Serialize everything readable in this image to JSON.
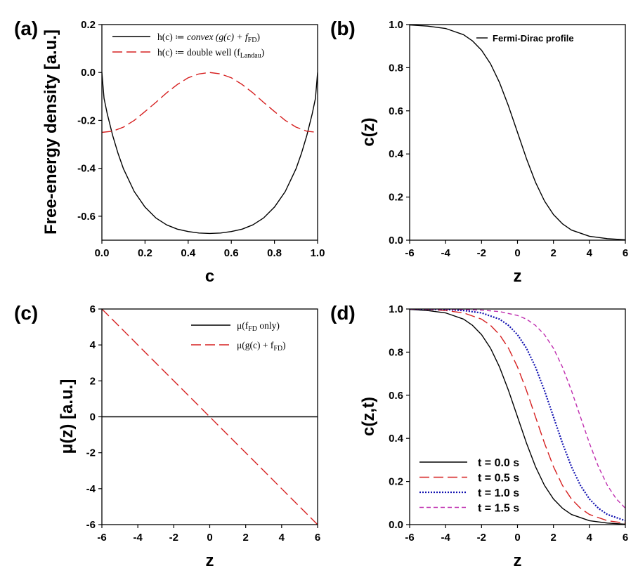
{
  "chart_data": [
    {
      "panel": "(a)",
      "type": "line",
      "xlabel": "c",
      "ylabel": "Free-energy density [a.u.]",
      "xlim": [
        0.0,
        1.0
      ],
      "ylim": [
        -0.7,
        0.2
      ],
      "x_ticks": [
        "0.0",
        "0.2",
        "0.4",
        "0.6",
        "0.8",
        "1.0"
      ],
      "y_ticks": [
        "-0.6",
        "-0.4",
        "-0.2",
        "0.0",
        "0.2"
      ],
      "legend_position": "top-right",
      "series": [
        {
          "name": "h(c) ≔ convex (g(c) + fFD)",
          "name_parts": {
            "prefix": "h(c) ≔ ",
            "italic": "convex (g(c) + f",
            "sub": "FD",
            "suffix": ")"
          },
          "color": "#000000",
          "dash": "solid",
          "x": [
            0.0,
            0.01,
            0.025,
            0.05,
            0.075,
            0.1,
            0.15,
            0.2,
            0.25,
            0.3,
            0.35,
            0.4,
            0.45,
            0.5,
            0.55,
            0.6,
            0.65,
            0.7,
            0.75,
            0.8,
            0.85,
            0.9,
            0.925,
            0.95,
            0.975,
            0.99,
            1.0
          ],
          "y": [
            0.0,
            -0.108,
            -0.173,
            -0.263,
            -0.338,
            -0.402,
            -0.497,
            -0.562,
            -0.607,
            -0.636,
            -0.654,
            -0.664,
            -0.67,
            -0.672,
            -0.67,
            -0.664,
            -0.654,
            -0.636,
            -0.607,
            -0.562,
            -0.497,
            -0.402,
            -0.338,
            -0.263,
            -0.173,
            -0.108,
            0.0
          ]
        },
        {
          "name": "h(c) ≔ double well (fLandau)",
          "name_parts": {
            "prefix": "h(c) ≔ double well (f",
            "sub": "Landau",
            "suffix": ")"
          },
          "color": "#d62020",
          "dash": "long-dash",
          "x": [
            0.0,
            0.05,
            0.1,
            0.15,
            0.2,
            0.25,
            0.3,
            0.35,
            0.4,
            0.45,
            0.5,
            0.55,
            0.6,
            0.65,
            0.7,
            0.75,
            0.8,
            0.85,
            0.9,
            0.95,
            1.0
          ],
          "y": [
            -0.25,
            -0.245,
            -0.228,
            -0.2,
            -0.163,
            -0.125,
            -0.085,
            -0.05,
            -0.022,
            -0.006,
            0.0,
            -0.006,
            -0.022,
            -0.05,
            -0.085,
            -0.125,
            -0.163,
            -0.2,
            -0.228,
            -0.245,
            -0.25
          ]
        }
      ]
    },
    {
      "panel": "(b)",
      "type": "line",
      "xlabel": "z",
      "ylabel": "c(z)",
      "xlim": [
        -6,
        6
      ],
      "ylim": [
        0.0,
        1.0
      ],
      "x_ticks": [
        "-6",
        "-4",
        "-2",
        "0",
        "2",
        "4",
        "6"
      ],
      "y_ticks": [
        "0.0",
        "0.2",
        "0.4",
        "0.6",
        "0.8",
        "1.0"
      ],
      "legend_position": "top-right",
      "series": [
        {
          "name": "Fermi-Dirac profile",
          "color": "#000000",
          "dash": "solid",
          "x": [
            -6,
            -5,
            -4,
            -3,
            -2.5,
            -2,
            -1.5,
            -1,
            -0.5,
            0,
            0.5,
            1,
            1.5,
            2,
            2.5,
            3,
            4,
            5,
            6
          ],
          "y": [
            0.998,
            0.993,
            0.982,
            0.953,
            0.924,
            0.881,
            0.818,
            0.731,
            0.622,
            0.5,
            0.378,
            0.269,
            0.182,
            0.119,
            0.076,
            0.047,
            0.018,
            0.007,
            0.002
          ]
        }
      ]
    },
    {
      "panel": "(c)",
      "type": "line",
      "xlabel": "z",
      "ylabel": "μ(z) [a.u.]",
      "xlim": [
        -6,
        6
      ],
      "ylim": [
        -6,
        6
      ],
      "x_ticks": [
        "-6",
        "-4",
        "-2",
        "0",
        "2",
        "4",
        "6"
      ],
      "y_ticks": [
        "-6",
        "-4",
        "-2",
        "0",
        "2",
        "4",
        "6"
      ],
      "legend_position": "top-right",
      "series": [
        {
          "name": "μ(fFD only)",
          "name_parts": {
            "prefix": "μ(f",
            "sub": "FD",
            "suffix": " only)"
          },
          "color": "#000000",
          "dash": "solid",
          "x": [
            -6,
            6
          ],
          "y": [
            0,
            0
          ]
        },
        {
          "name": "μ(g(c) + fFD)",
          "name_parts": {
            "prefix": "μ(g(c) + f",
            "sub": "FD",
            "suffix": ")"
          },
          "color": "#d62020",
          "dash": "long-dash",
          "x": [
            -6,
            6
          ],
          "y": [
            6,
            -6
          ]
        }
      ]
    },
    {
      "panel": "(d)",
      "type": "line",
      "xlabel": "z",
      "ylabel": "c(z,t)",
      "xlim": [
        -6,
        6
      ],
      "ylim": [
        0.0,
        1.0
      ],
      "x_ticks": [
        "-6",
        "-4",
        "-2",
        "0",
        "2",
        "4",
        "6"
      ],
      "y_ticks": [
        "0.0",
        "0.2",
        "0.4",
        "0.6",
        "0.8",
        "1.0"
      ],
      "legend_position": "bottom-left",
      "series": [
        {
          "name": "t = 0.0 s",
          "color": "#000000",
          "dash": "solid",
          "x": [
            -6,
            -5,
            -4,
            -3,
            -2.5,
            -2,
            -1.5,
            -1,
            -0.5,
            0,
            0.5,
            1,
            1.5,
            2,
            2.5,
            3,
            4,
            5,
            6
          ],
          "y": [
            0.998,
            0.993,
            0.982,
            0.953,
            0.924,
            0.881,
            0.818,
            0.731,
            0.622,
            0.5,
            0.378,
            0.269,
            0.182,
            0.119,
            0.076,
            0.047,
            0.018,
            0.007,
            0.002
          ]
        },
        {
          "name": "t = 0.5 s",
          "color": "#d62020",
          "dash": "long-dash",
          "x": [
            -6,
            -5,
            -4,
            -3,
            -2,
            -1.5,
            -1,
            -0.5,
            0,
            0.5,
            1,
            1.5,
            2,
            2.5,
            3,
            3.5,
            4,
            5,
            6
          ],
          "y": [
            0.999,
            0.998,
            0.993,
            0.982,
            0.953,
            0.924,
            0.881,
            0.818,
            0.731,
            0.622,
            0.5,
            0.378,
            0.269,
            0.182,
            0.119,
            0.076,
            0.047,
            0.018,
            0.007
          ]
        },
        {
          "name": "t = 1.0 s",
          "color": "#1010b0",
          "dash": "dotted",
          "x": [
            -6,
            -5,
            -4,
            -3,
            -2,
            -1,
            -0.5,
            0,
            0.5,
            1,
            1.5,
            2,
            2.5,
            3,
            3.5,
            4,
            4.5,
            5,
            6
          ],
          "y": [
            1.0,
            0.999,
            0.998,
            0.993,
            0.982,
            0.953,
            0.924,
            0.881,
            0.818,
            0.731,
            0.622,
            0.5,
            0.378,
            0.269,
            0.182,
            0.119,
            0.076,
            0.047,
            0.018
          ]
        },
        {
          "name": "t = 1.5 s",
          "color": "#c030b0",
          "dash": "short-dash",
          "x": [
            -6,
            -4,
            -2,
            -1,
            0,
            0.5,
            1,
            1.5,
            2,
            2.5,
            3,
            3.5,
            4,
            4.5,
            5,
            5.5,
            6
          ],
          "y": [
            1.0,
            0.999,
            0.995,
            0.988,
            0.97,
            0.953,
            0.924,
            0.881,
            0.818,
            0.731,
            0.622,
            0.5,
            0.378,
            0.269,
            0.182,
            0.119,
            0.076
          ]
        }
      ]
    }
  ]
}
